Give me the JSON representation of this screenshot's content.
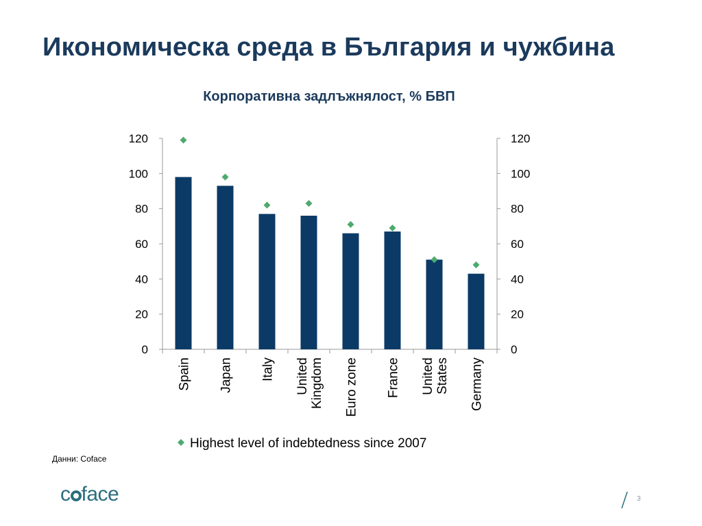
{
  "slide": {
    "title": "Икономическа среда в България и чужбина",
    "source": "Данни: Coface",
    "logo_text": "coface",
    "page_number": "3"
  },
  "colors": {
    "bar": "#0b3a66",
    "marker": "#4daa6e",
    "title": "#1b3a5c",
    "brand": "#2b6e7e"
  },
  "chart_data": {
    "type": "bar",
    "title": "Корпоративна задлъжнялост, % БВП",
    "categories": [
      "Spain",
      "Japan",
      "Italy",
      "United Kingdom",
      "Euro zone",
      "France",
      "United States",
      "Germany"
    ],
    "category_label_lines": [
      [
        "Spain"
      ],
      [
        "Japan"
      ],
      [
        "Italy"
      ],
      [
        "United",
        "Kingdom"
      ],
      [
        "Euro zone"
      ],
      [
        "France"
      ],
      [
        "United",
        "States"
      ],
      [
        "Germany"
      ]
    ],
    "series": [
      {
        "values": [
          98,
          93,
          77,
          76,
          66,
          67,
          51,
          43
        ]
      },
      {
        "name": "Highest level of indebtedness since 2007",
        "marker": "diamond",
        "values": [
          119,
          98,
          82,
          83,
          71,
          69,
          51,
          48
        ]
      }
    ],
    "ylim": [
      0,
      120
    ],
    "yticks": [
      0,
      20,
      40,
      60,
      80,
      100,
      120
    ],
    "secondary_yticks": [
      0,
      20,
      40,
      60,
      80,
      100,
      120
    ],
    "grid": false,
    "legend_position": "bottom",
    "xlabel": "",
    "ylabel": ""
  }
}
